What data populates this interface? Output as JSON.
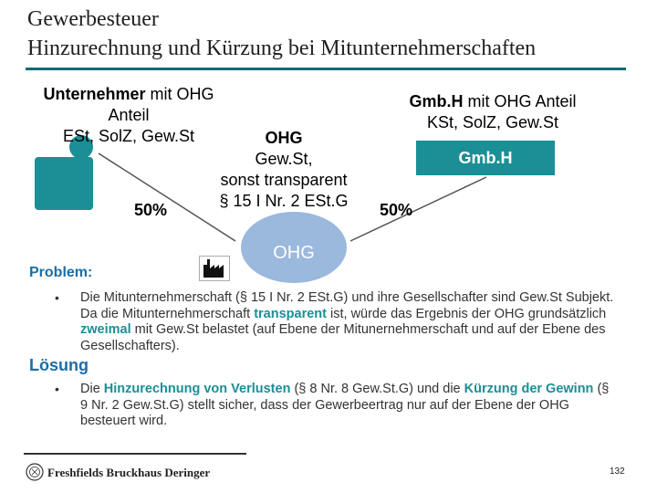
{
  "title": {
    "line1": "Gewerbesteuer",
    "line2": "Hinzurechnung und Kürzung bei Mitunternehmerschaften"
  },
  "diagram": {
    "unternehmer": {
      "bold": "Unternehmer",
      "line1_rest": " mit OHG",
      "line2": "Anteil",
      "line3": "ESt, SolZ, Gew.St"
    },
    "gmbh_heading": {
      "bold": "Gmb.H",
      "line1_rest": " mit OHG Anteil",
      "line2": "KSt, SolZ, Gew.St"
    },
    "gmbh_box": "Gmb.H",
    "ohg_text": {
      "bold": "OHG",
      "line2": "Gew.St,",
      "line3": "sonst transparent",
      "line4": "§ 15 I Nr. 2 ESt.G"
    },
    "percent_left": "50%",
    "percent_right": "50%",
    "ohg_ellipse_label": "OHG"
  },
  "problem": {
    "label": "Problem:",
    "bullet": "•",
    "text_part1": "Die Mitunternehmerschaft (§ 15 I Nr. 2 ESt.G) und ihre Gesellschafter sind Gew.St Subjekt. Da die Mitunternehmerschaft ",
    "text_highlight1": "transparent",
    "text_part2": " ist, würde das Ergebnis der OHG grundsätzlich ",
    "text_highlight2": "zweimal",
    "text_part3": " mit Gew.St belastet (auf Ebene der Mitunernehmerschaft und auf der Ebene des Gesellschafters)."
  },
  "loesung": {
    "label": "Lösung",
    "bullet": "•",
    "text_part1": "Die ",
    "text_highlight1": "Hinzurechnung von Verlusten",
    "text_part2": " (§ 8 Nr. 8 Gew.St.G) und die ",
    "text_highlight2": "Kürzung der Gewinn",
    "text_part3": " (§ 9 Nr. 2 Gew.St.G) stellt sicher, dass der Gewerbeertrag nur auf der Ebene der OHG besteuert wird."
  },
  "footer": {
    "firm": "Freshfields Bruckhaus Deringer",
    "page": "132"
  },
  "colors": {
    "accent": "#1a8f96",
    "ellipse": "#9bb8dd",
    "label_blue": "#1a6ea8"
  }
}
